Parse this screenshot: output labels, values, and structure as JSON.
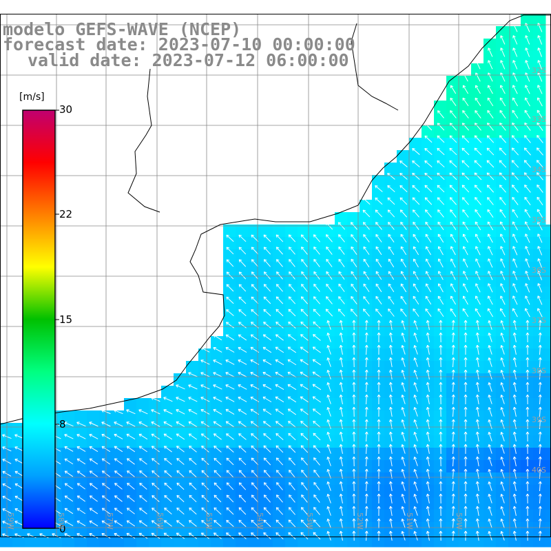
{
  "title": {
    "line1": "modelo GEFS-WAVE (NCEP)",
    "line2": "forecast date: 2023-07-10 00:00:00",
    "line3": "valid date: 2023-07-12 06:00:00"
  },
  "colorbar": {
    "unit": "[m/s]",
    "min": 0,
    "max": 30,
    "ticks": [
      {
        "label": "30",
        "value": 30
      },
      {
        "label": "22",
        "value": 22
      },
      {
        "label": "15",
        "value": 15
      },
      {
        "label": "8",
        "value": 8
      },
      {
        "label": "0",
        "value": 0
      }
    ],
    "colors": [
      "#0000ff",
      "#00a0ff",
      "#00ffff",
      "#00ff80",
      "#00c000",
      "#ffff00",
      "#ff8000",
      "#ff0000",
      "#c00070"
    ]
  },
  "map": {
    "land_color": "#ffffff",
    "grid_color": "#888888",
    "vector_color": "#ffffff",
    "lat_labels": [
      "32S",
      "33S",
      "34S",
      "35S",
      "36S",
      "37S",
      "38S",
      "39S",
      "40S"
    ],
    "lon_labels": [
      "59W",
      "58W",
      "57W",
      "56W",
      "55W",
      "54W",
      "53W",
      "52W",
      "51W",
      "50W"
    ]
  }
}
